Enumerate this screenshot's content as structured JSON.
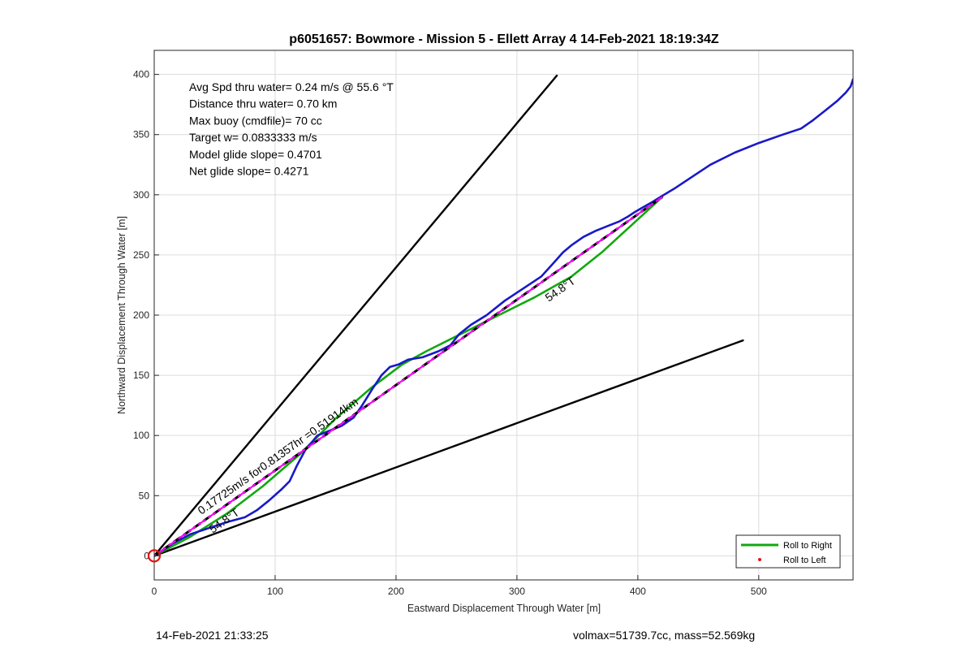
{
  "chart_data": {
    "type": "line",
    "title": "p6051657: Bowmore - Mission 5 - Ellett Array 4 14-Feb-2021 18:19:34Z",
    "xlabel": "Eastward Displacement Through Water [m]",
    "ylabel": "Northward Displacement Through Water [m]",
    "xlim": [
      0,
      578
    ],
    "ylim": [
      -20,
      420
    ],
    "xticks": [
      0,
      100,
      200,
      300,
      400,
      500
    ],
    "yticks": [
      0,
      50,
      100,
      150,
      200,
      250,
      300,
      350,
      400
    ],
    "grid": true,
    "legend_position": "bottom-right",
    "legend": [
      {
        "label": "Roll to Right",
        "color": "#11a80f",
        "style": "line"
      },
      {
        "label": "Roll to Left",
        "color": "#e81010",
        "style": "dot"
      }
    ],
    "info_lines": [
      "Avg Spd thru water=  0.24 m/s @  55.6 °T",
      "Distance thru water=  0.70 km",
      "Max buoy (cmdfile)= 70 cc",
      "Target w= 0.0833333 m/s",
      "Model glide slope= 0.4701",
      "Net glide slope= 0.4271"
    ],
    "annotations": {
      "current": "0.17725m/s for0.81357hr =0.51914km",
      "heading_near": "54.8°T",
      "heading_far": "54.8°T"
    },
    "series": [
      {
        "name": "",
        "color": "#1919c8",
        "style": "solid",
        "x": [
          0,
          15,
          30,
          45,
          60,
          75,
          85,
          95,
          105,
          112,
          118,
          125,
          135,
          145,
          155,
          165,
          172,
          180,
          188,
          195,
          202,
          210,
          222,
          235,
          245,
          252,
          262,
          275,
          290,
          305,
          320,
          330,
          338,
          345,
          355,
          365,
          375,
          385,
          392,
          398,
          405,
          412,
          420,
          430,
          445,
          460,
          480,
          500,
          520,
          535,
          545,
          555,
          565,
          572,
          576,
          578
        ],
        "y": [
          0,
          10,
          18,
          23,
          28,
          32,
          38,
          46,
          55,
          62,
          75,
          88,
          100,
          104,
          108,
          115,
          125,
          138,
          150,
          157,
          159,
          163,
          165,
          170,
          175,
          184,
          192,
          200,
          212,
          222,
          232,
          243,
          252,
          258,
          265,
          270,
          274,
          278,
          282,
          286,
          290,
          294,
          299,
          305,
          315,
          325,
          335,
          343,
          350,
          355,
          362,
          370,
          378,
          385,
          390,
          396
        ]
      },
      {
        "name": "",
        "color": "#000000",
        "style": "dashed",
        "x": [
          0,
          420
        ],
        "y": [
          0,
          298
        ]
      },
      {
        "name": "",
        "color": "#ff00ff",
        "style": "dashed",
        "x": [
          0,
          420
        ],
        "y": [
          0,
          298
        ]
      },
      {
        "name": "Roll to Right",
        "color": "#11a80f",
        "style": "solid",
        "x": [
          0,
          30,
          60,
          90,
          120,
          150,
          180,
          205,
          225,
          255,
          285,
          315,
          345,
          370,
          395,
          420
        ],
        "y": [
          0,
          16,
          35,
          58,
          84,
          114,
          140,
          159,
          170,
          185,
          200,
          215,
          232,
          252,
          275,
          298
        ]
      },
      {
        "name": "",
        "color": "#000000",
        "style": "solid",
        "x": [
          0,
          333
        ],
        "y": [
          0,
          399
        ]
      },
      {
        "name": "",
        "color": "#000000",
        "style": "solid",
        "x": [
          0,
          487
        ],
        "y": [
          0,
          179
        ]
      }
    ],
    "start_marker": {
      "x": 0,
      "y": 0,
      "color": "#e81010"
    }
  },
  "footer": {
    "left": "14-Feb-2021 21:33:25",
    "right": "volmax=51739.7cc, mass=52.569kg"
  }
}
